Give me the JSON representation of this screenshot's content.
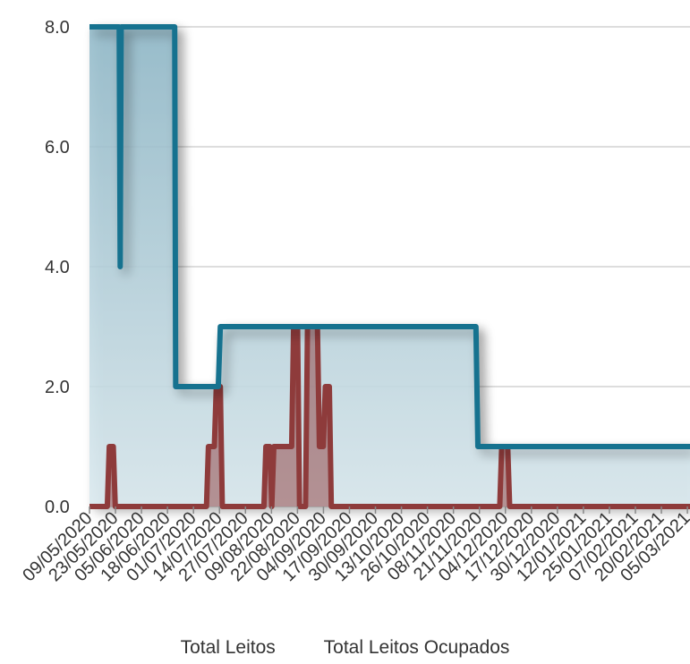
{
  "chart_data": {
    "type": "area",
    "x_labels": [
      "09/05/2020",
      "23/05/2020",
      "05/06/2020",
      "18/06/2020",
      "01/07/2020",
      "14/07/2020",
      "27/07/2020",
      "09/08/2020",
      "22/08/2020",
      "04/09/2020",
      "17/09/2020",
      "30/09/2020",
      "13/10/2020",
      "26/10/2020",
      "08/11/2020",
      "21/11/2020",
      "04/12/2020",
      "17/12/2020",
      "30/12/2020",
      "12/01/2021",
      "25/01/2021",
      "07/02/2021",
      "20/02/2021",
      "05/03/2021"
    ],
    "y_ticks": [
      "0.0",
      "2.0",
      "4.0",
      "6.0",
      "8.0"
    ],
    "ylim": [
      0,
      8
    ],
    "x_range_days": [
      0,
      303
    ],
    "grid": true,
    "legend_position": "bottom",
    "series": [
      {
        "name": "Total Leitos",
        "color": "#16728f",
        "fill": "#c3dde6",
        "points": [
          [
            0,
            8
          ],
          [
            15,
            8
          ],
          [
            15.5,
            4
          ],
          [
            16,
            8
          ],
          [
            43,
            8
          ],
          [
            43.5,
            2
          ],
          [
            65,
            2
          ],
          [
            66,
            3
          ],
          [
            195,
            3
          ],
          [
            196,
            1
          ],
          [
            303,
            1
          ]
        ]
      },
      {
        "name": "Total Leitos Ocupados",
        "color": "#8e3b3b",
        "points": [
          [
            0,
            0
          ],
          [
            9,
            0
          ],
          [
            10,
            1
          ],
          [
            12,
            1
          ],
          [
            13,
            0
          ],
          [
            59,
            0
          ],
          [
            60,
            1
          ],
          [
            63,
            1
          ],
          [
            64,
            2
          ],
          [
            66,
            2
          ],
          [
            67,
            0
          ],
          [
            88,
            0
          ],
          [
            89,
            1
          ],
          [
            91,
            1
          ],
          [
            92,
            0
          ],
          [
            93,
            1
          ],
          [
            102,
            1
          ],
          [
            103,
            3
          ],
          [
            105,
            3
          ],
          [
            106,
            0
          ],
          [
            109,
            0
          ],
          [
            110,
            3
          ],
          [
            115,
            3
          ],
          [
            116,
            1
          ],
          [
            118,
            1
          ],
          [
            119,
            2
          ],
          [
            121,
            2
          ],
          [
            122,
            0
          ],
          [
            207,
            0
          ],
          [
            208,
            1
          ],
          [
            211,
            1
          ],
          [
            212,
            0
          ],
          [
            303,
            0
          ]
        ]
      }
    ]
  },
  "legend": {
    "total_leitos": "Total Leitos",
    "total_leitos_ocupados": "Total Leitos Ocupados"
  }
}
